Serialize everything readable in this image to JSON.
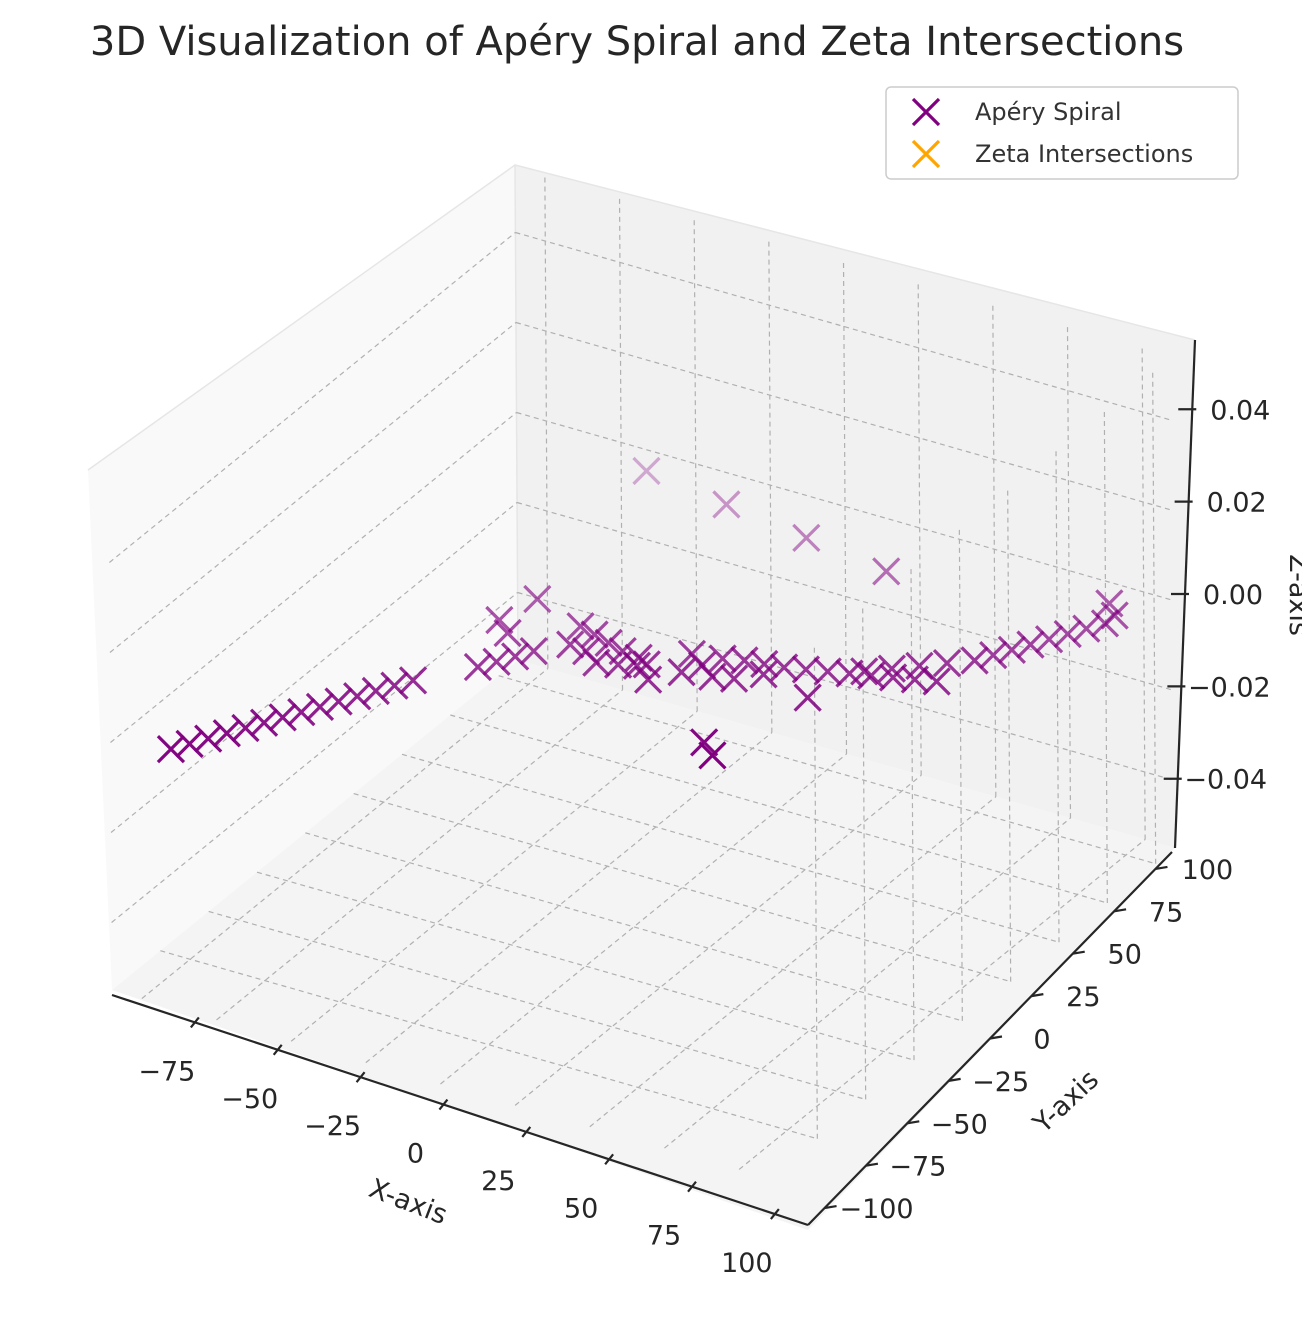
{
  "chart_data": {
    "type": "scatter",
    "projection": "3d",
    "title": "3D Visualization of Apéry Spiral and Zeta Intersections",
    "xlabel": "X-axis",
    "ylabel": "Y-axis",
    "zlabel": "Z-axis",
    "xlim": [
      -100,
      110
    ],
    "ylim": [
      -110,
      110
    ],
    "zlim": [
      -0.055,
      0.055
    ],
    "x_ticks": [
      "−75",
      "−50",
      "−25",
      "0",
      "25",
      "50",
      "75",
      "100"
    ],
    "y_ticks": [
      "−100",
      "−75",
      "−50",
      "−25",
      "0",
      "25",
      "50",
      "75",
      "100"
    ],
    "z_ticks": [
      "−0.04",
      "−0.02",
      "0.00",
      "0.02",
      "0.04"
    ],
    "x_tick_values": [
      -75,
      -50,
      -25,
      0,
      25,
      50,
      75,
      100
    ],
    "y_tick_values": [
      -100,
      -75,
      -50,
      -25,
      0,
      25,
      50,
      75,
      100
    ],
    "z_tick_values": [
      -0.04,
      -0.02,
      0.0,
      0.02,
      0.04
    ],
    "grid": true,
    "legend_position": "top-right",
    "marker": "x",
    "colors": {
      "apery": "#800080",
      "zeta": "#ffa500"
    },
    "series": [
      {
        "name": "Apéry Spiral",
        "color": "#800080",
        "x": [
          9,
          7,
          11,
          5,
          12,
          3,
          14,
          7,
          16,
          8,
          18,
          2,
          20,
          10,
          16,
          0,
          22,
          12,
          -5,
          24,
          14,
          -10,
          25,
          20,
          -15,
          26,
          5,
          -20,
          28,
          25,
          -25,
          30,
          10,
          15,
          -30,
          32,
          35,
          -35,
          34,
          40,
          -40,
          36,
          45,
          -45,
          38,
          50,
          -50,
          40,
          55,
          -55,
          60,
          -60,
          65,
          -65,
          70,
          -70,
          75,
          -75,
          80,
          -80,
          85,
          -85,
          90,
          -90,
          95,
          -95,
          100,
          100,
          95,
          90,
          85
        ],
        "y": [
          1,
          3,
          5,
          8,
          11,
          14,
          17,
          20,
          23,
          26,
          29,
          -4,
          -7,
          -10,
          -13,
          33,
          -16,
          -19,
          36,
          -22,
          -25,
          39,
          -28,
          -31,
          42,
          -34,
          45,
          -37,
          -40,
          48,
          -43,
          -46,
          51,
          -49,
          54,
          -52,
          -55,
          57,
          -58,
          -61,
          60,
          -64,
          -67,
          63,
          -70,
          -73,
          66,
          -76,
          -79,
          69,
          -82,
          72,
          -85,
          75,
          -88,
          78,
          -91,
          81,
          -94,
          84,
          -97,
          87,
          -100,
          90,
          -100,
          93,
          -95,
          60,
          30,
          0,
          -30
        ],
        "z": [
          0,
          0,
          0,
          0,
          0,
          0,
          0,
          0,
          0,
          0,
          0,
          0,
          0,
          0,
          0,
          0,
          0,
          0,
          0,
          0,
          0,
          0,
          0,
          0,
          0,
          0,
          0,
          0,
          0,
          0,
          0,
          0,
          0,
          0,
          0,
          0,
          0,
          0,
          0,
          0,
          0,
          0,
          0,
          0,
          0,
          0,
          0,
          0,
          0,
          0,
          0,
          0,
          0,
          0,
          0,
          0,
          0,
          0,
          0,
          0,
          0,
          0,
          0,
          0,
          0,
          0,
          0,
          0,
          0,
          0,
          0
        ]
      },
      {
        "name": "Zeta Intersections",
        "color": "#ffa500",
        "x": [],
        "y": [],
        "z": []
      }
    ]
  }
}
